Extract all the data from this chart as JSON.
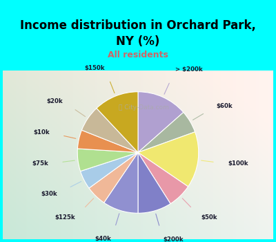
{
  "title": "Income distribution in Orchard Park,\nNY (%)",
  "subtitle": "All residents",
  "title_color": "#000000",
  "subtitle_color": "#cc6666",
  "background_cyan": "#00ffff",
  "background_chart_colors": [
    "#c8e8d8",
    "#e8f4ec",
    "#f0f8f0",
    "#ffffff"
  ],
  "labels": [
    "> $200k",
    "$60k",
    "$100k",
    "$50k",
    "$200k",
    "$40k",
    "$125k",
    "$30k",
    "$75k",
    "$10k",
    "$20k",
    "$150k"
  ],
  "values": [
    13.5,
    6.0,
    15.0,
    6.5,
    9.0,
    9.5,
    5.5,
    5.0,
    6.0,
    5.0,
    7.0,
    12.0
  ],
  "colors": [
    "#b0a0d0",
    "#a8b8a0",
    "#f0e870",
    "#e898a8",
    "#8080c8",
    "#9090d0",
    "#f0b898",
    "#a8cce8",
    "#b0e090",
    "#e89050",
    "#c8b898",
    "#c8a820"
  ],
  "startangle": 90,
  "wedge_linewidth": 0.8,
  "wedge_linecolor": "#ffffff"
}
